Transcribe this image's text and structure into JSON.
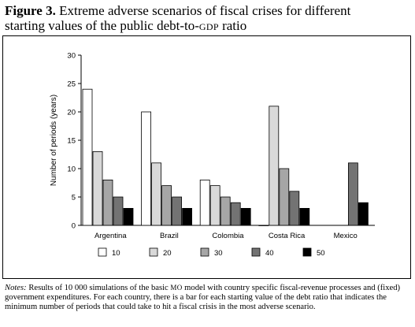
{
  "figure": {
    "label": "Figure 3.",
    "title_line1": "Extreme adverse scenarios of fiscal crises for different",
    "title_line2_a": "starting values of the public debt-to-",
    "title_line2_sc": "GDP",
    "title_line2_b": " ratio"
  },
  "notes": {
    "label": "Notes:",
    "text_a": " Results of 10 000 simulations of the basic ",
    "text_sc": "MO",
    "text_b": " model with country specific fiscal-revenue processes and (fixed) government expenditures. For each country, there is a bar for each starting value of the debt ratio that indicates the minimum number of periods that could take to hit a fiscal crisis in the most adverse scenario."
  },
  "chart_data": {
    "type": "bar",
    "ylabel": "Number of periods (years)",
    "xlabel": "",
    "ylim": [
      0,
      30
    ],
    "yticks": [
      0,
      5,
      10,
      15,
      20,
      25,
      30
    ],
    "grid": false,
    "legend_position": "bottom",
    "categories": [
      "Argentina",
      "Brazil",
      "Colombia",
      "Costa Rica",
      "Mexico"
    ],
    "series": [
      {
        "name": "10",
        "color": "#ffffff",
        "values": [
          24,
          20,
          8,
          0,
          null
        ]
      },
      {
        "name": "20",
        "color": "#d9d9d9",
        "values": [
          13,
          11,
          7,
          21,
          null
        ]
      },
      {
        "name": "30",
        "color": "#a6a6a6",
        "values": [
          8,
          7,
          5,
          10,
          null
        ]
      },
      {
        "name": "40",
        "color": "#737373",
        "values": [
          5,
          5,
          4,
          6,
          11
        ]
      },
      {
        "name": "50",
        "color": "#000000",
        "values": [
          3,
          3,
          3,
          3,
          4
        ]
      }
    ]
  }
}
